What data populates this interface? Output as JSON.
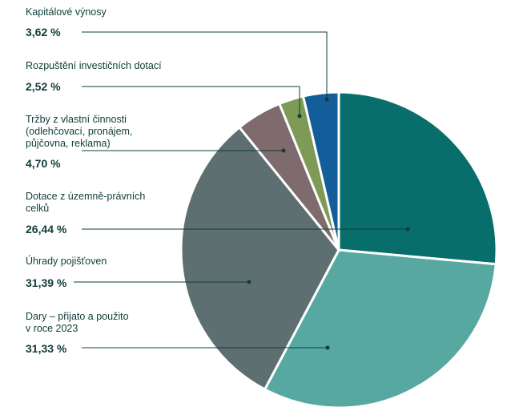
{
  "chart_data": {
    "type": "pie",
    "start_angle_deg": 0,
    "direction": "clockwise",
    "slices": [
      {
        "label": "Dotace z územně-právních\ncelků",
        "value": 26.44,
        "value_label": "26,44 %",
        "color": "#076e6b"
      },
      {
        "label": "Dary – přijato a použito\nv roce 2023",
        "value": 31.33,
        "value_label": "31,33 %",
        "color": "#56a8a0"
      },
      {
        "label": "Úhrady pojišťoven",
        "value": 31.39,
        "value_label": "31,39 %",
        "color": "#5e6f71"
      },
      {
        "label": "Tržby z vlastní činnosti\n(odlehčovací, pronájem,\npůjčovna, reklama)",
        "value": 4.7,
        "value_label": "4,70 %",
        "color": "#7f6b6e"
      },
      {
        "label": "Rozpuštění investičních dotací",
        "value": 2.52,
        "value_label": "2,52 %",
        "color": "#7e9a57"
      },
      {
        "label": "Kapitálové výnosy",
        "value": 3.62,
        "value_label": "3,62 %",
        "color": "#135e9a"
      }
    ],
    "legend_placement": "left",
    "line_color": "#0f3d38"
  }
}
